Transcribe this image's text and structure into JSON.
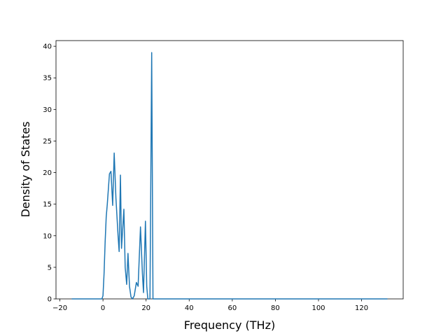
{
  "chart_data": {
    "type": "line",
    "x_label": "Frequency (THz)",
    "y_label": "Density of States",
    "x": [
      -14.5,
      -0.5,
      0,
      0.5,
      1,
      1.5,
      2,
      3,
      3.7,
      4.5,
      5.2,
      6,
      7,
      7.5,
      8.1,
      8.6,
      9.7,
      10.3,
      11,
      11.6,
      12.3,
      13,
      13.7,
      14.5,
      15.5,
      16.3,
      17.4,
      18.3,
      18.8,
      19.7,
      20.3,
      20.8,
      21.8,
      22.6,
      23.2,
      132
    ],
    "series": [
      {
        "color": "#1f77b4",
        "values": [
          0,
          0,
          0.5,
          4,
          9,
          13,
          15,
          19.8,
          20.2,
          14.8,
          23.1,
          16,
          10,
          7.5,
          19.6,
          8,
          14.2,
          5,
          2.3,
          7.2,
          2,
          0.3,
          0,
          0.5,
          2.6,
          2,
          11.4,
          4,
          1,
          12.3,
          2,
          0,
          0,
          39,
          0,
          0
        ]
      }
    ],
    "xlim": [
      -21.8,
      139.3
    ],
    "ylim": [
      0,
      40.9
    ],
    "xticks": [
      {
        "value": -20,
        "label": "−20"
      },
      0,
      20,
      40,
      60,
      80,
      100,
      120
    ],
    "yticks": [
      0,
      5,
      10,
      15,
      20,
      25,
      30,
      35,
      40
    ]
  }
}
